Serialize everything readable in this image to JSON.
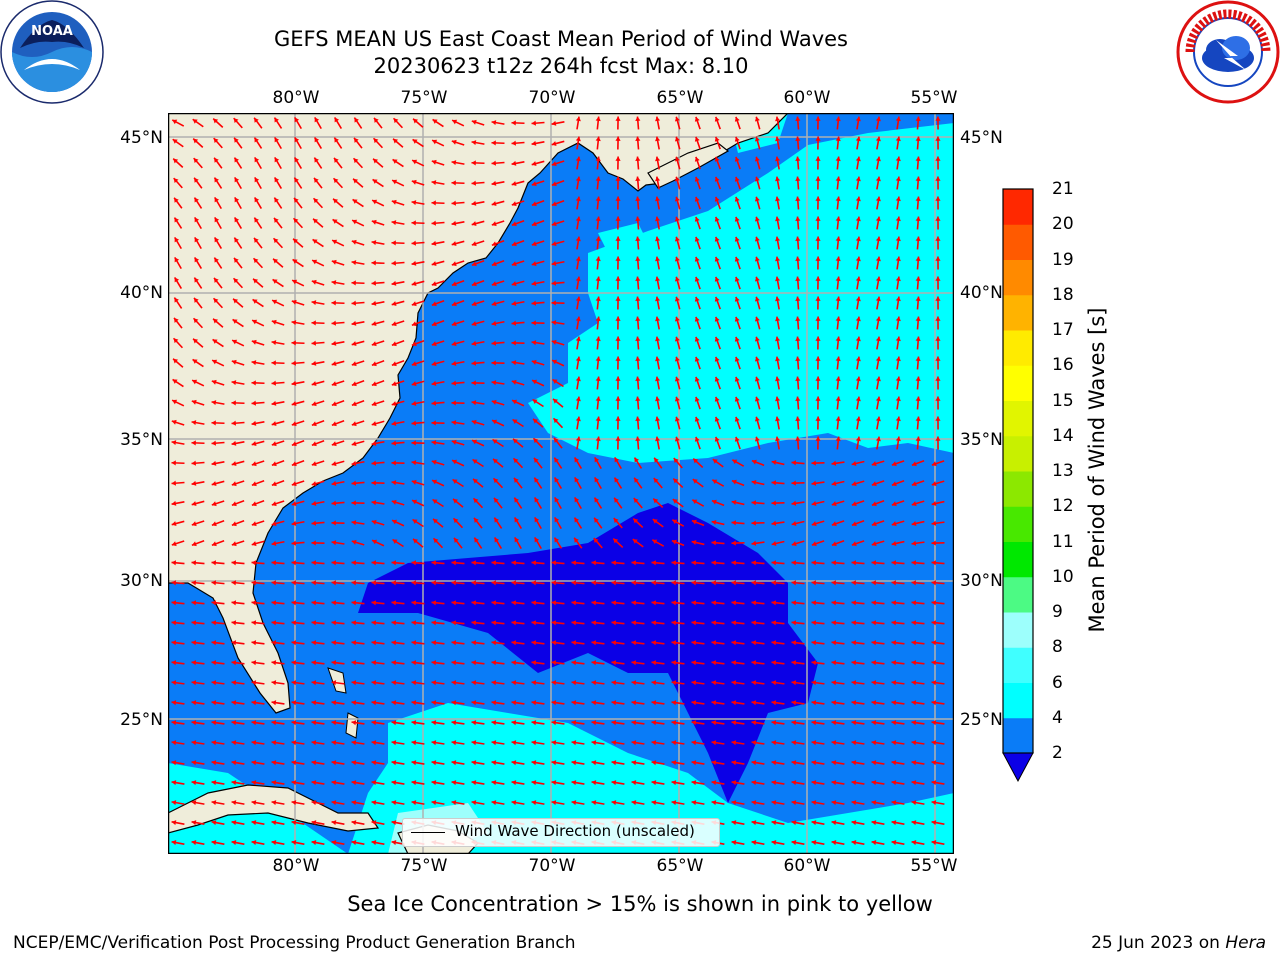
{
  "header": {
    "title_line1": "GEFS MEAN US East Coast Mean Period of Wind Waves",
    "title_line2": "20230623 t12z 264h fcst   Max: 8.10"
  },
  "logos": {
    "left": {
      "icon": "noaa-logo",
      "text": "NOAA"
    },
    "right": {
      "icon": "nws-logo",
      "text": "NATIONAL WEATHER SERVICE"
    }
  },
  "map": {
    "lon_labels": [
      "80°W",
      "75°W",
      "70°W",
      "65°W",
      "60°W",
      "55°W"
    ],
    "lat_labels": [
      "45°N",
      "40°N",
      "35°N",
      "30°N",
      "25°N"
    ],
    "extent": {
      "lon_min": -85,
      "lon_max": -54.2,
      "lat_min": 20.5,
      "lat_max": 45.8
    },
    "colors": {
      "land": "#efedda",
      "water_2_4": "#0a7cf7",
      "water_lt2": "#0b00e6",
      "water_4_6": "#00ffff",
      "arrows": "#ff0000",
      "grid": "#b0b0b0"
    },
    "legend": {
      "label": "Wind Wave Direction (unscaled)"
    }
  },
  "colorbar": {
    "title": "Mean Period of Wind Waves [s]",
    "ticks": [
      "2",
      "4",
      "6",
      "8",
      "9",
      "10",
      "11",
      "12",
      "13",
      "14",
      "15",
      "16",
      "17",
      "18",
      "19",
      "20",
      "21"
    ],
    "colors": [
      "#0a7cf7",
      "#00ffff",
      "#40ffff",
      "#9dfffc",
      "#4cfa84",
      "#00e800",
      "#48e800",
      "#8ce800",
      "#c8f000",
      "#e1f500",
      "#ffff00",
      "#ffeb00",
      "#ffb300",
      "#ff8a00",
      "#ff5a00",
      "#ff2800"
    ],
    "under_color": "#0b00e6"
  },
  "footer": {
    "note": "Sea Ice Concentration > 15% is shown in pink to yellow",
    "left": "NCEP/EMC/Verification Post Processing Product Generation Branch",
    "date": "25 Jun 2023 on ",
    "host": "Hera"
  }
}
